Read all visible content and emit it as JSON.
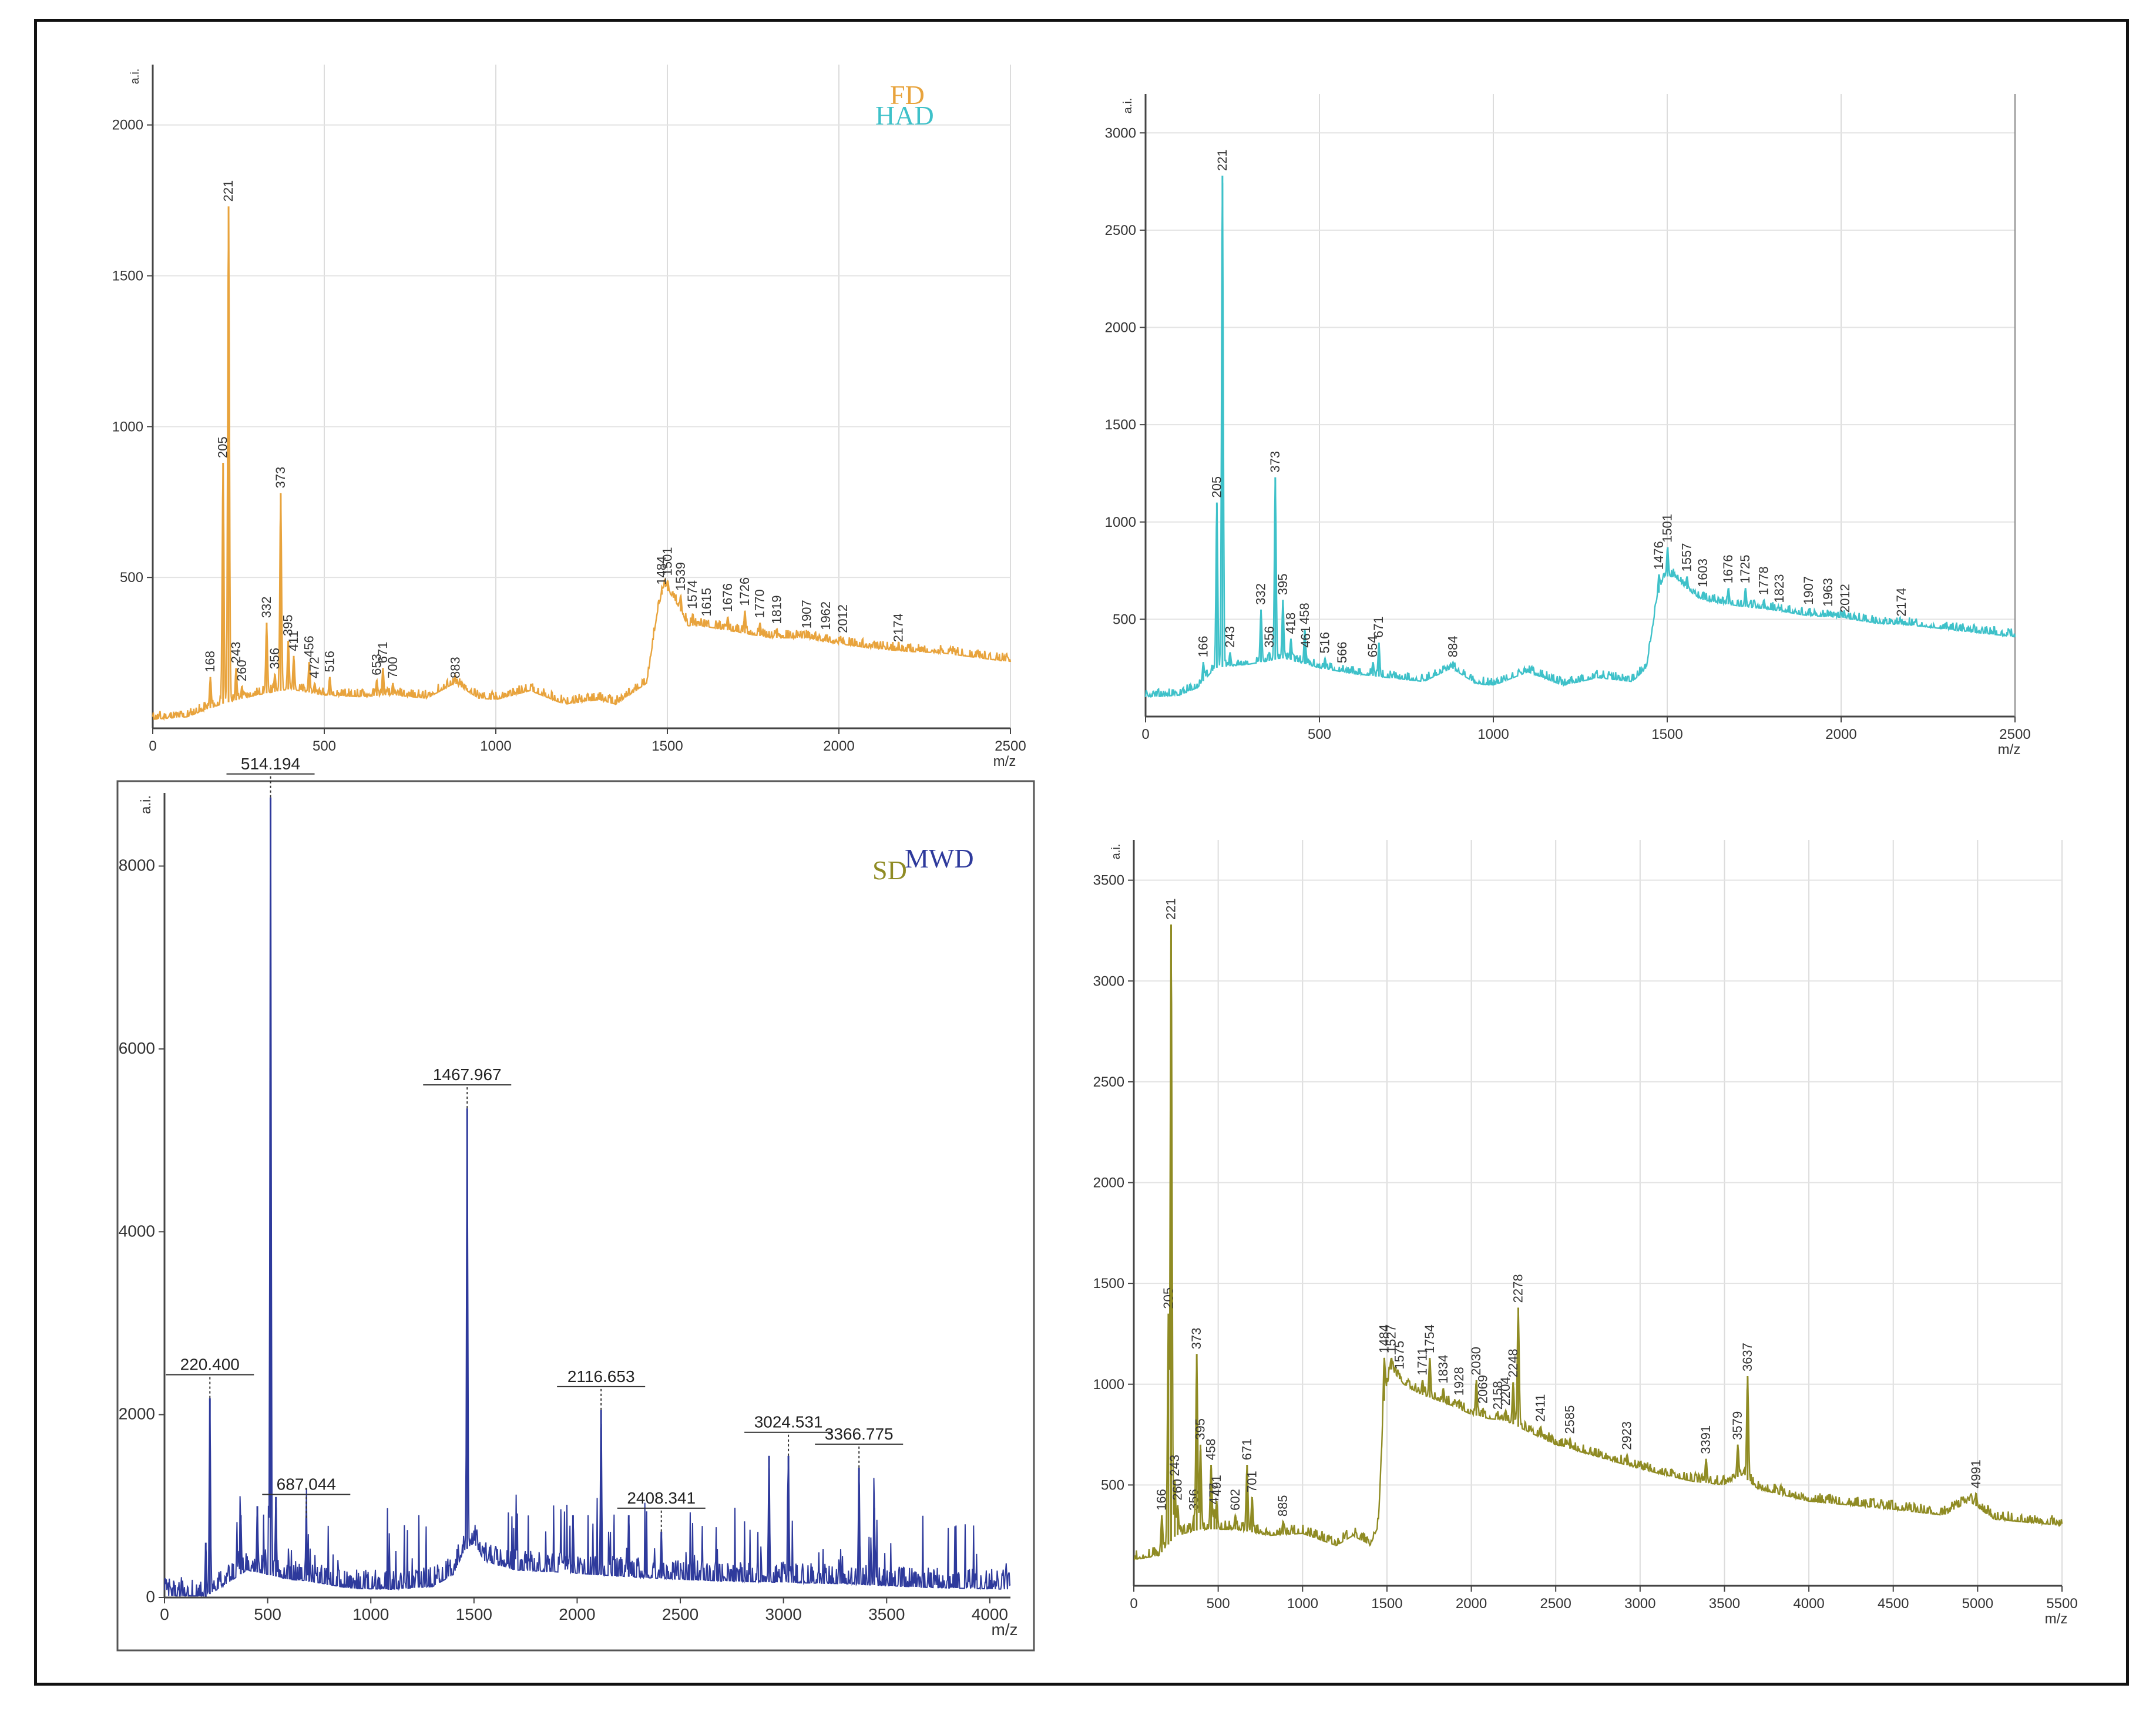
{
  "figure": {
    "description_panels": [
      "FD",
      "HAD",
      "MWD",
      "SD"
    ]
  },
  "chart_data": [
    {
      "id": "FD",
      "type": "line",
      "title": "FD",
      "color": "#E8A33C",
      "xlabel": "m/z",
      "ylabel": "a.i.",
      "xlim": [
        0,
        2500
      ],
      "ylim": [
        0,
        2200
      ],
      "xticks": [
        0,
        500,
        1000,
        1500,
        2000,
        2500
      ],
      "yticks": [
        500,
        1000,
        1500,
        2000
      ],
      "grid": true,
      "baseline": [
        [
          0,
          30
        ],
        [
          100,
          38
        ],
        [
          150,
          60
        ],
        [
          200,
          80
        ],
        [
          300,
          110
        ],
        [
          400,
          130
        ],
        [
          500,
          110
        ],
        [
          600,
          105
        ],
        [
          700,
          110
        ],
        [
          800,
          100
        ],
        [
          880,
          150
        ],
        [
          950,
          100
        ],
        [
          1000,
          95
        ],
        [
          1100,
          125
        ],
        [
          1200,
          80
        ],
        [
          1300,
          95
        ],
        [
          1350,
          80
        ],
        [
          1440,
          150
        ],
        [
          1470,
          380
        ],
        [
          1490,
          470
        ],
        [
          1520,
          430
        ],
        [
          1560,
          340
        ],
        [
          1600,
          340
        ],
        [
          1700,
          320
        ],
        [
          1800,
          300
        ],
        [
          1900,
          300
        ],
        [
          2000,
          280
        ],
        [
          2100,
          265
        ],
        [
          2200,
          255
        ],
        [
          2300,
          250
        ],
        [
          2400,
          235
        ],
        [
          2500,
          220
        ]
      ],
      "peaks": [
        {
          "x": 168,
          "y": 170,
          "label": "168"
        },
        {
          "x": 205,
          "y": 880,
          "label": "205"
        },
        {
          "x": 221,
          "y": 1730,
          "label": "221"
        },
        {
          "x": 243,
          "y": 200,
          "label": "243"
        },
        {
          "x": 260,
          "y": 140,
          "label": "260"
        },
        {
          "x": 332,
          "y": 350,
          "label": "332"
        },
        {
          "x": 356,
          "y": 180,
          "label": "356"
        },
        {
          "x": 373,
          "y": 780,
          "label": "373"
        },
        {
          "x": 395,
          "y": 290,
          "label": "395"
        },
        {
          "x": 411,
          "y": 240,
          "label": "411"
        },
        {
          "x": 456,
          "y": 220,
          "label": "456"
        },
        {
          "x": 472,
          "y": 150,
          "label": "472"
        },
        {
          "x": 516,
          "y": 170,
          "label": "516"
        },
        {
          "x": 653,
          "y": 160,
          "label": "653"
        },
        {
          "x": 671,
          "y": 200,
          "label": "671"
        },
        {
          "x": 700,
          "y": 150,
          "label": "700"
        },
        {
          "x": 883,
          "y": 150,
          "label": "883"
        },
        {
          "x": 1484,
          "y": 460,
          "label": "1484"
        },
        {
          "x": 1501,
          "y": 490,
          "label": "1501"
        },
        {
          "x": 1539,
          "y": 440,
          "label": "1539"
        },
        {
          "x": 1574,
          "y": 380,
          "label": "1574"
        },
        {
          "x": 1615,
          "y": 355,
          "label": "1615"
        },
        {
          "x": 1676,
          "y": 370,
          "label": "1676"
        },
        {
          "x": 1726,
          "y": 390,
          "label": "1726"
        },
        {
          "x": 1770,
          "y": 350,
          "label": "1770"
        },
        {
          "x": 1819,
          "y": 330,
          "label": "1819"
        },
        {
          "x": 1907,
          "y": 315,
          "label": "1907"
        },
        {
          "x": 1962,
          "y": 310,
          "label": "1962"
        },
        {
          "x": 2012,
          "y": 300,
          "label": "2012"
        },
        {
          "x": 2174,
          "y": 270,
          "label": "2174"
        }
      ]
    },
    {
      "id": "HAD",
      "type": "line",
      "title": "HAD",
      "color": "#3EC1C9",
      "xlabel": "m/z",
      "ylabel": "a.i.",
      "xlim": [
        0,
        2500
      ],
      "ylim": [
        0,
        3200
      ],
      "xticks": [
        0,
        500,
        1000,
        1500,
        2000,
        2500
      ],
      "yticks": [
        500,
        1000,
        1500,
        2000,
        2500,
        3000
      ],
      "grid": true,
      "baseline": [
        [
          0,
          100
        ],
        [
          100,
          110
        ],
        [
          150,
          150
        ],
        [
          200,
          250
        ],
        [
          300,
          270
        ],
        [
          400,
          300
        ],
        [
          500,
          250
        ],
        [
          600,
          220
        ],
        [
          700,
          200
        ],
        [
          800,
          180
        ],
        [
          880,
          250
        ],
        [
          950,
          170
        ],
        [
          1000,
          160
        ],
        [
          1100,
          230
        ],
        [
          1200,
          160
        ],
        [
          1300,
          200
        ],
        [
          1400,
          180
        ],
        [
          1440,
          250
        ],
        [
          1470,
          600
        ],
        [
          1490,
          720
        ],
        [
          1520,
          720
        ],
        [
          1560,
          650
        ],
        [
          1600,
          600
        ],
        [
          1700,
          570
        ],
        [
          1800,
          550
        ],
        [
          1900,
          520
        ],
        [
          2000,
          510
        ],
        [
          2100,
          480
        ],
        [
          2200,
          470
        ],
        [
          2300,
          450
        ],
        [
          2400,
          430
        ],
        [
          2500,
          410
        ]
      ],
      "peaks": [
        {
          "x": 166,
          "y": 280,
          "label": "166"
        },
        {
          "x": 205,
          "y": 1100,
          "label": "205"
        },
        {
          "x": 221,
          "y": 2780,
          "label": "221"
        },
        {
          "x": 243,
          "y": 330,
          "label": "243"
        },
        {
          "x": 332,
          "y": 550,
          "label": "332"
        },
        {
          "x": 356,
          "y": 330,
          "label": "356"
        },
        {
          "x": 373,
          "y": 1230,
          "label": "373"
        },
        {
          "x": 395,
          "y": 600,
          "label": "395"
        },
        {
          "x": 418,
          "y": 400,
          "label": "418"
        },
        {
          "x": 458,
          "y": 450,
          "label": "458"
        },
        {
          "x": 461,
          "y": 330,
          "label": "461"
        },
        {
          "x": 516,
          "y": 300,
          "label": "516"
        },
        {
          "x": 566,
          "y": 250,
          "label": "566"
        },
        {
          "x": 654,
          "y": 280,
          "label": "654"
        },
        {
          "x": 671,
          "y": 380,
          "label": "671"
        },
        {
          "x": 884,
          "y": 280,
          "label": "884"
        },
        {
          "x": 1476,
          "y": 730,
          "label": "1476"
        },
        {
          "x": 1501,
          "y": 870,
          "label": "1501"
        },
        {
          "x": 1557,
          "y": 720,
          "label": "1557"
        },
        {
          "x": 1603,
          "y": 640,
          "label": "1603"
        },
        {
          "x": 1676,
          "y": 660,
          "label": "1676"
        },
        {
          "x": 1725,
          "y": 660,
          "label": "1725"
        },
        {
          "x": 1778,
          "y": 600,
          "label": "1778"
        },
        {
          "x": 1823,
          "y": 560,
          "label": "1823"
        },
        {
          "x": 1907,
          "y": 550,
          "label": "1907"
        },
        {
          "x": 1963,
          "y": 540,
          "label": "1963"
        },
        {
          "x": 2012,
          "y": 510,
          "label": "2012"
        },
        {
          "x": 2174,
          "y": 490,
          "label": "2174"
        }
      ]
    },
    {
      "id": "MWD",
      "type": "line",
      "title": "MWD",
      "color": "#2E3A9C",
      "xlabel": "m/z",
      "ylabel": "a.i.",
      "xlim": [
        0,
        4100
      ],
      "ylim": [
        0,
        8800
      ],
      "xticks": [
        0,
        500,
        1000,
        1500,
        2000,
        2500,
        3000,
        3500,
        4000
      ],
      "yticks": [
        0,
        2000,
        4000,
        6000,
        8000
      ],
      "ytick_labels": [
        "0",
        "2000",
        "4000",
        "6000",
        "8000"
      ],
      "grid": false,
      "baseline": [
        [
          0,
          0
        ],
        [
          200,
          10
        ],
        [
          300,
          150
        ],
        [
          400,
          300
        ],
        [
          600,
          200
        ],
        [
          700,
          180
        ],
        [
          900,
          100
        ],
        [
          1100,
          90
        ],
        [
          1300,
          120
        ],
        [
          1400,
          250
        ],
        [
          1450,
          500
        ],
        [
          1500,
          600
        ],
        [
          1550,
          400
        ],
        [
          1700,
          300
        ],
        [
          1900,
          280
        ],
        [
          2100,
          250
        ],
        [
          2300,
          220
        ],
        [
          2500,
          200
        ],
        [
          2700,
          180
        ],
        [
          2900,
          170
        ],
        [
          3100,
          160
        ],
        [
          3300,
          150
        ],
        [
          3500,
          130
        ],
        [
          3700,
          110
        ],
        [
          4100,
          90
        ]
      ],
      "peaks": [
        {
          "x": 200,
          "y": 600,
          "label": ""
        },
        {
          "x": 220,
          "y": 2180,
          "label": "220.400"
        },
        {
          "x": 370,
          "y": 900,
          "label": ""
        },
        {
          "x": 450,
          "y": 1000,
          "label": ""
        },
        {
          "x": 514,
          "y": 8750,
          "label": "514.194"
        },
        {
          "x": 540,
          "y": 1100,
          "label": ""
        },
        {
          "x": 687,
          "y": 870,
          "label": "687.044"
        },
        {
          "x": 1467,
          "y": 5350,
          "label": "1467.967"
        },
        {
          "x": 1980,
          "y": 900,
          "label": ""
        },
        {
          "x": 2116,
          "y": 2050,
          "label": "2116.653"
        },
        {
          "x": 2250,
          "y": 900,
          "label": ""
        },
        {
          "x": 2408,
          "y": 720,
          "label": "2408.341"
        },
        {
          "x": 2930,
          "y": 1550,
          "label": ""
        },
        {
          "x": 3024,
          "y": 1550,
          "label": "3024.531"
        },
        {
          "x": 3366,
          "y": 1420,
          "label": "3366.775"
        },
        {
          "x": 3440,
          "y": 980,
          "label": ""
        }
      ]
    },
    {
      "id": "SD",
      "type": "line",
      "title": "SD",
      "color": "#8F8B23",
      "xlabel": "m/z",
      "ylabel": "a.i.",
      "xlim": [
        0,
        5500
      ],
      "ylim": [
        0,
        3700
      ],
      "xticks": [
        0,
        500,
        1000,
        1500,
        2000,
        2500,
        3000,
        3500,
        4000,
        4500,
        5000,
        5500
      ],
      "yticks": [
        500,
        1000,
        1500,
        2000,
        2500,
        3000,
        3500
      ],
      "grid": true,
      "baseline": [
        [
          0,
          130
        ],
        [
          150,
          150
        ],
        [
          250,
          250
        ],
        [
          400,
          280
        ],
        [
          600,
          280
        ],
        [
          800,
          250
        ],
        [
          1000,
          260
        ],
        [
          1200,
          200
        ],
        [
          1300,
          250
        ],
        [
          1400,
          200
        ],
        [
          1450,
          300
        ],
        [
          1480,
          900
        ],
        [
          1520,
          1080
        ],
        [
          1600,
          1000
        ],
        [
          1700,
          950
        ],
        [
          1800,
          920
        ],
        [
          1900,
          890
        ],
        [
          2000,
          850
        ],
        [
          2100,
          830
        ],
        [
          2200,
          820
        ],
        [
          2300,
          780
        ],
        [
          2500,
          700
        ],
        [
          3000,
          580
        ],
        [
          3300,
          520
        ],
        [
          3500,
          500
        ],
        [
          3600,
          550
        ],
        [
          3700,
          480
        ],
        [
          4000,
          420
        ],
        [
          4500,
          380
        ],
        [
          4800,
          350
        ],
        [
          4950,
          420
        ],
        [
          5100,
          330
        ],
        [
          5500,
          300
        ]
      ],
      "peaks": [
        {
          "x": 166,
          "y": 350,
          "label": "166"
        },
        {
          "x": 205,
          "y": 1350,
          "label": "205"
        },
        {
          "x": 221,
          "y": 3280,
          "label": "221"
        },
        {
          "x": 243,
          "y": 520,
          "label": "243"
        },
        {
          "x": 260,
          "y": 400,
          "label": "260"
        },
        {
          "x": 356,
          "y": 350,
          "label": "356"
        },
        {
          "x": 373,
          "y": 1150,
          "label": "373"
        },
        {
          "x": 395,
          "y": 700,
          "label": "395"
        },
        {
          "x": 458,
          "y": 600,
          "label": "458"
        },
        {
          "x": 477,
          "y": 380,
          "label": "477"
        },
        {
          "x": 491,
          "y": 420,
          "label": "491"
        },
        {
          "x": 602,
          "y": 350,
          "label": "602"
        },
        {
          "x": 671,
          "y": 600,
          "label": "671"
        },
        {
          "x": 701,
          "y": 440,
          "label": "701"
        },
        {
          "x": 885,
          "y": 320,
          "label": "885"
        },
        {
          "x": 1484,
          "y": 1130,
          "label": "1484"
        },
        {
          "x": 1527,
          "y": 1130,
          "label": "1527"
        },
        {
          "x": 1575,
          "y": 1050,
          "label": "1575"
        },
        {
          "x": 1711,
          "y": 1020,
          "label": "1711"
        },
        {
          "x": 1754,
          "y": 1130,
          "label": "1754"
        },
        {
          "x": 1834,
          "y": 980,
          "label": "1834"
        },
        {
          "x": 1928,
          "y": 920,
          "label": "1928"
        },
        {
          "x": 2030,
          "y": 1020,
          "label": "2030"
        },
        {
          "x": 2069,
          "y": 880,
          "label": "2069"
        },
        {
          "x": 2158,
          "y": 850,
          "label": "2158"
        },
        {
          "x": 2204,
          "y": 870,
          "label": "2204"
        },
        {
          "x": 2248,
          "y": 1010,
          "label": "2248"
        },
        {
          "x": 2278,
          "y": 1380,
          "label": "2278"
        },
        {
          "x": 2411,
          "y": 790,
          "label": "2411"
        },
        {
          "x": 2585,
          "y": 730,
          "label": "2585"
        },
        {
          "x": 2923,
          "y": 650,
          "label": "2923"
        },
        {
          "x": 3391,
          "y": 630,
          "label": "3391"
        },
        {
          "x": 3579,
          "y": 700,
          "label": "3579"
        },
        {
          "x": 3637,
          "y": 1040,
          "label": "3637"
        },
        {
          "x": 4991,
          "y": 460,
          "label": "4991"
        }
      ]
    }
  ]
}
